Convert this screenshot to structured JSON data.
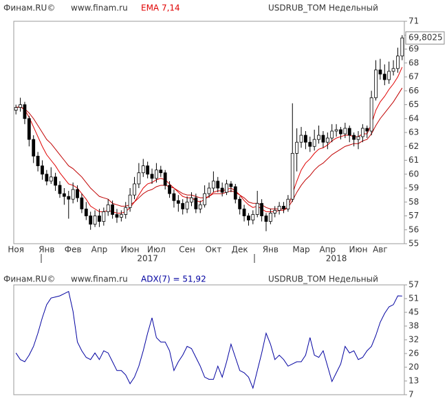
{
  "chart_data": [
    {
      "type": "candlestick",
      "source": "Финам.RU©",
      "site": "www.finam.ru",
      "indicator": "EMA 7,14",
      "title": "USDRUB_TOM Недельный",
      "categories": [
        "Ноя",
        null,
        null,
        null,
        null,
        null,
        null,
        "Янв",
        null,
        null,
        null,
        null,
        null,
        "Фев",
        null,
        null,
        null,
        null,
        null,
        "Апр",
        null,
        null,
        null,
        null,
        null,
        null,
        "Июн",
        null,
        null,
        null,
        null,
        null,
        "Июл",
        null,
        null,
        null,
        null,
        null,
        null,
        "Сен",
        null,
        null,
        null,
        null,
        null,
        "Окт",
        null,
        null,
        null,
        null,
        null,
        "Дек",
        null,
        null,
        null,
        null,
        null,
        null,
        "Янв",
        null,
        null,
        null,
        null,
        null,
        null,
        "Мар",
        null,
        null,
        null,
        null,
        null,
        "Апр",
        null,
        null,
        null,
        null,
        null,
        null,
        "Июн",
        null,
        null,
        null,
        null,
        "Авг",
        null,
        null,
        null,
        null,
        null
      ],
      "years": [
        null,
        null,
        null,
        null,
        null,
        null,
        null,
        null,
        null,
        null,
        null,
        null,
        null,
        null,
        null,
        null,
        null,
        null,
        null,
        null,
        null,
        null,
        null,
        null,
        null,
        null,
        null,
        null,
        null,
        null,
        "2017",
        null,
        null,
        null,
        null,
        null,
        null,
        null,
        null,
        null,
        null,
        null,
        null,
        null,
        null,
        null,
        null,
        null,
        null,
        null,
        null,
        null,
        null,
        null,
        null,
        null,
        null,
        null,
        null,
        null,
        null,
        null,
        null,
        null,
        null,
        null,
        null,
        null,
        null,
        null,
        null,
        null,
        null,
        "2018",
        null,
        null,
        null,
        null,
        null,
        null,
        null,
        null,
        null,
        null,
        null,
        null,
        null,
        null,
        null
      ],
      "open": [
        64.6,
        64.8,
        65.0,
        64.0,
        62.5,
        61.3,
        60.6,
        60.0,
        59.5,
        59.8,
        59.2,
        58.6,
        58.4,
        58.2,
        58.9,
        58.3,
        57.5,
        57.0,
        56.4,
        57.0,
        56.6,
        57.3,
        57.8,
        57.1,
        56.9,
        57.1,
        57.6,
        58.5,
        59.3,
        60.1,
        60.6,
        60.0,
        59.7,
        60.3,
        60.1,
        59.2,
        58.6,
        58.1,
        57.9,
        57.5,
        58.0,
        58.3,
        57.5,
        57.8,
        58.6,
        59.0,
        59.5,
        59.0,
        58.7,
        59.3,
        59.1,
        58.2,
        57.5,
        57.0,
        56.7,
        57.1,
        57.9,
        57.0,
        56.6,
        57.2,
        57.4,
        57.7,
        57.5,
        58.2,
        61.5,
        62.3,
        62.8,
        62.3,
        62.0,
        62.5,
        62.8,
        62.3,
        62.6,
        63.1,
        63.2,
        62.9,
        63.3,
        62.8,
        62.5,
        62.7,
        63.3,
        63.1,
        65.5,
        67.5,
        67.2,
        66.8,
        67.4,
        67.6,
        68.5
      ],
      "high": [
        65.0,
        65.5,
        65.2,
        64.2,
        62.8,
        61.6,
        61.0,
        60.3,
        60.5,
        60.1,
        59.5,
        59.0,
        58.8,
        59.4,
        59.2,
        58.6,
        58.0,
        57.3,
        57.4,
        57.5,
        57.6,
        58.2,
        58.1,
        57.5,
        57.4,
        58.0,
        59.0,
        59.8,
        60.8,
        61.1,
        60.9,
        60.4,
        60.8,
        60.6,
        60.3,
        59.5,
        58.9,
        58.5,
        58.2,
        58.4,
        58.7,
        58.6,
        58.1,
        59.2,
        59.4,
        60.2,
        59.8,
        59.4,
        59.6,
        59.5,
        59.3,
        58.4,
        57.8,
        57.2,
        57.4,
        58.8,
        58.2,
        57.2,
        57.5,
        57.7,
        58.0,
        58.0,
        58.5,
        65.1,
        63.3,
        63.4,
        63.1,
        62.7,
        63.2,
        63.5,
        63.1,
        63.0,
        63.6,
        63.6,
        63.4,
        63.7,
        63.5,
        63.0,
        63.1,
        63.6,
        63.5,
        66.0,
        68.2,
        68.3,
        67.9,
        68.1,
        68.2,
        69.1,
        70.0
      ],
      "low": [
        64.3,
        64.5,
        63.6,
        62.0,
        60.8,
        60.2,
        59.6,
        59.2,
        59.3,
        58.8,
        58.3,
        57.8,
        56.8,
        57.9,
        58.0,
        57.2,
        56.7,
        56.0,
        56.2,
        56.2,
        56.3,
        57.0,
        56.8,
        56.5,
        56.6,
        56.8,
        57.3,
        58.2,
        59.0,
        59.8,
        59.7,
        59.3,
        59.4,
        59.8,
        58.9,
        58.3,
        57.6,
        57.3,
        57.1,
        57.2,
        57.7,
        57.2,
        57.2,
        57.6,
        58.3,
        58.7,
        58.7,
        58.4,
        58.5,
        58.7,
        57.9,
        57.1,
        56.6,
        56.3,
        56.4,
        56.9,
        56.6,
        55.9,
        56.4,
        56.9,
        57.1,
        57.2,
        57.3,
        58.0,
        60.2,
        61.9,
        61.8,
        61.6,
        61.7,
        62.2,
        61.9,
        61.8,
        62.3,
        62.7,
        62.5,
        62.6,
        62.3,
        62.0,
        61.8,
        62.3,
        62.6,
        62.8,
        65.3,
        66.8,
        66.4,
        66.5,
        67.1,
        67.3,
        68.2
      ],
      "close": [
        64.8,
        65.0,
        64.0,
        62.5,
        61.3,
        60.6,
        60.0,
        59.5,
        59.8,
        59.2,
        58.6,
        58.4,
        58.2,
        58.9,
        58.3,
        57.5,
        57.0,
        56.4,
        57.0,
        56.6,
        57.3,
        57.8,
        57.1,
        56.9,
        57.1,
        57.6,
        58.5,
        59.3,
        60.1,
        60.6,
        60.0,
        59.7,
        60.3,
        60.1,
        59.2,
        58.6,
        58.1,
        57.9,
        57.5,
        58.0,
        58.3,
        57.5,
        57.8,
        58.6,
        59.0,
        59.5,
        59.0,
        58.7,
        59.3,
        59.1,
        58.2,
        57.5,
        57.0,
        56.7,
        57.1,
        57.9,
        57.0,
        56.6,
        57.2,
        57.4,
        57.7,
        57.5,
        58.2,
        61.5,
        62.3,
        62.8,
        62.3,
        62.0,
        62.5,
        62.8,
        62.3,
        62.6,
        63.1,
        63.2,
        62.9,
        63.3,
        62.8,
        62.5,
        62.7,
        63.3,
        63.1,
        65.5,
        67.5,
        67.2,
        66.8,
        67.4,
        67.6,
        68.5,
        69.8025
      ],
      "lines": [
        {
          "color": "#e00000",
          "values": [
            64.8,
            64.85,
            64.64,
            64.1,
            63.4,
            62.7,
            62.0,
            61.4,
            61.0,
            60.6,
            60.1,
            59.7,
            59.3,
            59.2,
            59.0,
            58.6,
            58.2,
            57.7,
            57.5,
            57.3,
            57.3,
            57.4,
            57.3,
            57.2,
            57.2,
            57.3,
            57.6,
            58.0,
            58.5,
            59.0,
            59.3,
            59.4,
            59.6,
            59.7,
            59.6,
            59.3,
            59.0,
            58.7,
            58.4,
            58.3,
            58.3,
            58.1,
            58.0,
            58.2,
            58.4,
            58.7,
            58.8,
            58.8,
            58.9,
            59.0,
            58.8,
            58.5,
            58.1,
            57.8,
            57.6,
            57.7,
            57.5,
            57.3,
            57.3,
            57.3,
            57.4,
            57.4,
            57.6,
            58.6,
            59.5,
            60.3,
            60.8,
            61.1,
            61.5,
            61.8,
            61.9,
            62.1,
            62.4,
            62.6,
            62.7,
            62.8,
            62.8,
            62.7,
            62.7,
            62.9,
            62.9,
            63.6,
            64.6,
            65.2,
            65.6,
            66.1,
            66.5,
            67.0,
            67.7
          ]
        },
        {
          "color": "#c00000",
          "values": [
            64.8,
            64.83,
            64.7,
            64.4,
            64.0,
            63.5,
            63.0,
            62.5,
            62.2,
            61.8,
            61.4,
            61.0,
            60.6,
            60.4,
            60.1,
            59.8,
            59.4,
            59.0,
            58.7,
            58.4,
            58.3,
            58.2,
            57.9,
            57.8,
            57.7,
            57.7,
            57.8,
            58.0,
            58.3,
            58.6,
            58.8,
            58.9,
            59.1,
            59.2,
            59.2,
            59.1,
            59.0,
            58.8,
            58.6,
            58.5,
            58.5,
            58.4,
            58.3,
            58.3,
            58.4,
            58.6,
            58.6,
            58.6,
            58.7,
            58.8,
            58.7,
            58.5,
            58.3,
            58.0,
            57.9,
            57.9,
            57.8,
            57.6,
            57.5,
            57.5,
            57.5,
            57.5,
            57.6,
            58.1,
            58.7,
            59.2,
            59.6,
            59.9,
            60.3,
            60.6,
            60.8,
            61.1,
            61.4,
            61.6,
            61.8,
            62.0,
            62.1,
            62.2,
            62.2,
            62.4,
            62.5,
            62.9,
            63.5,
            64.0,
            64.4,
            64.8,
            65.2,
            65.7,
            66.2
          ]
        }
      ],
      "last_value": 69.8025,
      "last_label": "69,8025",
      "ylim": [
        55,
        71
      ],
      "yticks": [
        55,
        56,
        57,
        58,
        59,
        60,
        61,
        62,
        63,
        64,
        65,
        66,
        67,
        68,
        69,
        70,
        71
      ],
      "grid": false
    },
    {
      "type": "line",
      "source": "Финам.RU©",
      "site": "www.finam.ru",
      "indicator": "ADX(7) = 51,92",
      "title": "USDRUB_TOM Недельный",
      "color": "#0000a0",
      "values": [
        26,
        23,
        22,
        25,
        29,
        35,
        42,
        48,
        51,
        51.5,
        52,
        53,
        54,
        45,
        31,
        27,
        24,
        23,
        26,
        23,
        27,
        26,
        22,
        18,
        18,
        16,
        12,
        15,
        20,
        27,
        35,
        42,
        33,
        31,
        31,
        27,
        18,
        22,
        25,
        29,
        28,
        24,
        20,
        15,
        14,
        14,
        20,
        15,
        22,
        30,
        24,
        18,
        17,
        15,
        10,
        18,
        26,
        35,
        30,
        23,
        25,
        23,
        20,
        21,
        22,
        22,
        25,
        33,
        25,
        24,
        27,
        20,
        13,
        17,
        21,
        29,
        26,
        27,
        23,
        24,
        27,
        29,
        34,
        40,
        44,
        47,
        48,
        52,
        51.92
      ],
      "ylim": [
        7,
        57
      ],
      "yticks": [
        7,
        {
          "value": 13.25,
          "label": "13"
        },
        {
          "value": 19.5,
          "label": "20"
        },
        {
          "value": 25.75,
          "label": "26"
        },
        32,
        {
          "value": 38.25,
          "label": "38"
        },
        {
          "value": 44.5,
          "label": "45"
        },
        {
          "value": 50.75,
          "label": "51"
        },
        57
      ],
      "grid": false
    }
  ]
}
